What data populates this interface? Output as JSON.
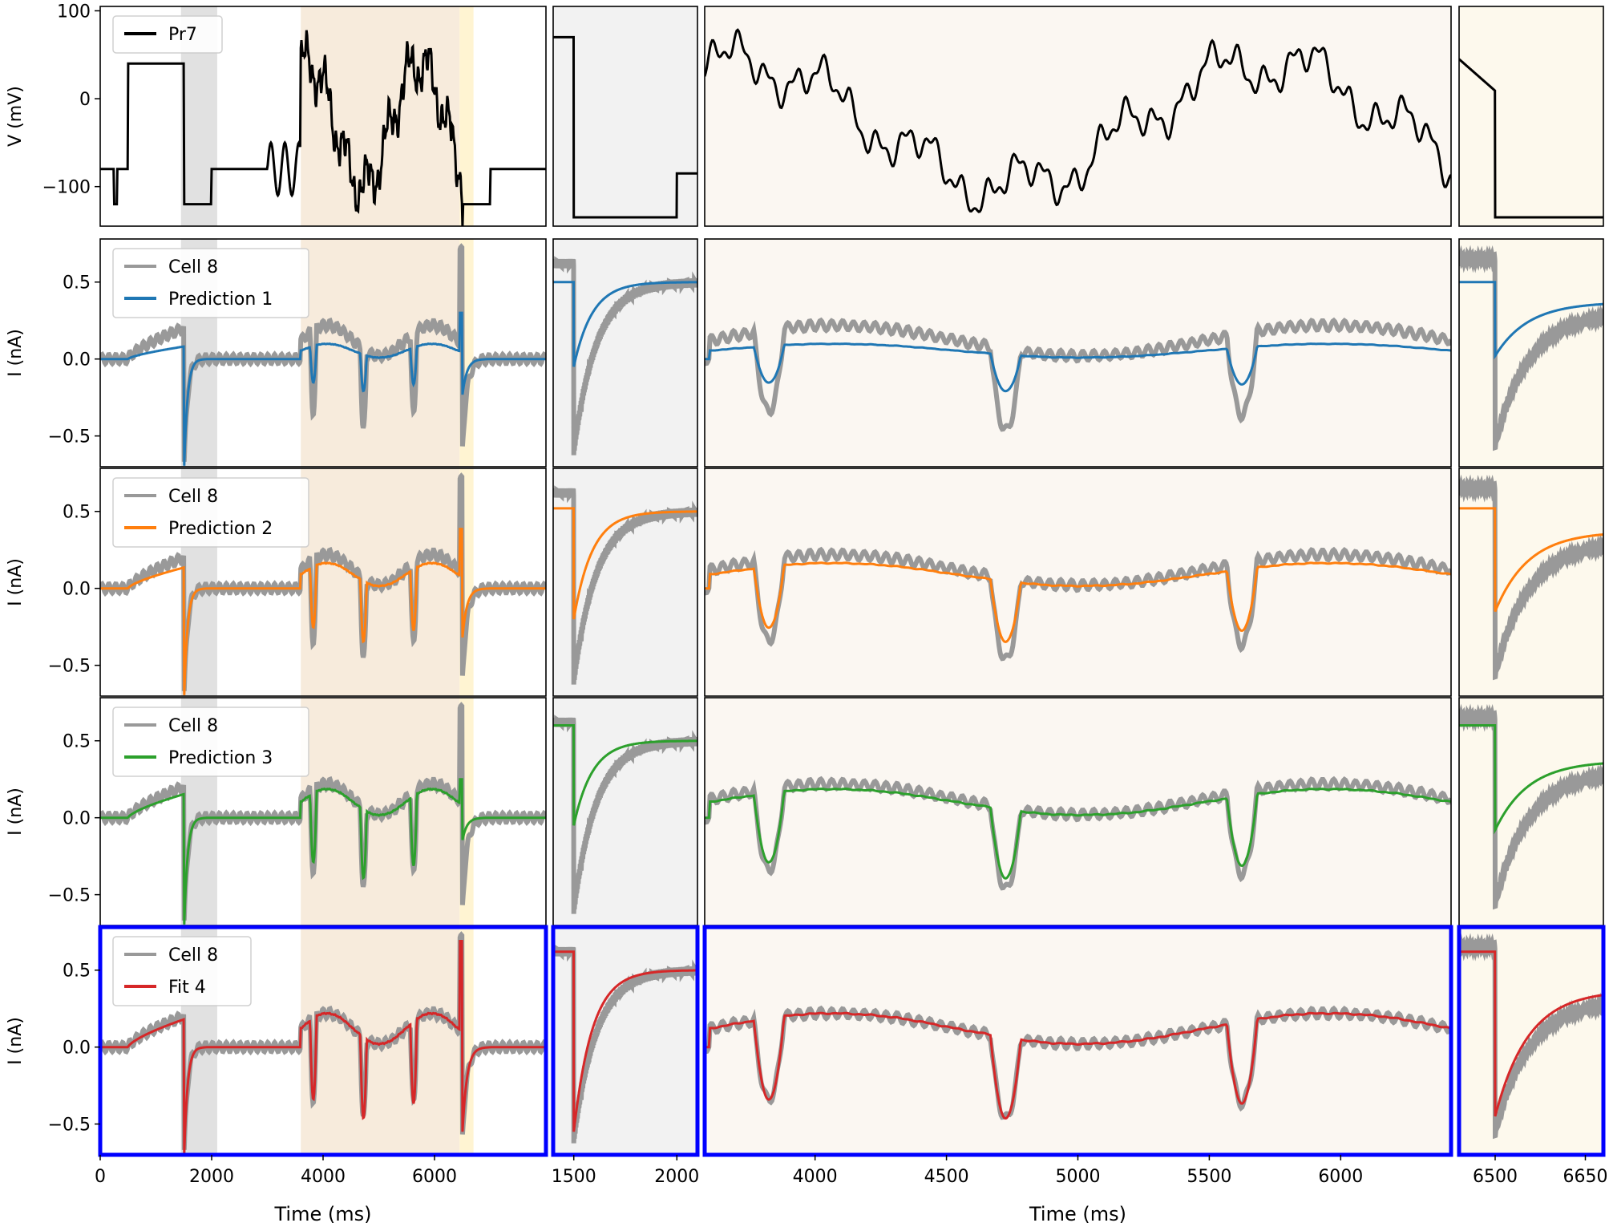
{
  "figure": {
    "x_label": "Time (ms)",
    "panels": [
      {
        "name": "panel-full",
        "xlim": [
          0,
          8000
        ],
        "xticks": [
          0,
          2000,
          4000,
          6000
        ],
        "shade": [
          {
            "from": 1450,
            "to": 2100,
            "color": "#d9d9d9"
          },
          {
            "from": 3600,
            "to": 6450,
            "color": "#f5e6d3"
          },
          {
            "from": 6450,
            "to": 6700,
            "color": "#fff1c7"
          }
        ],
        "frame": "#000000"
      },
      {
        "name": "panel-step",
        "xlim": [
          1400,
          2100
        ],
        "xticks": [
          1500,
          2000
        ],
        "shade": [
          {
            "from": 1400,
            "to": 2100,
            "color": "#efefef"
          }
        ],
        "frame": "#000000"
      },
      {
        "name": "panel-sine",
        "xlim": [
          3580,
          6420
        ],
        "xticks": [
          4000,
          4500,
          5000,
          5500,
          6000
        ],
        "shade": [
          {
            "from": 3580,
            "to": 6420,
            "color": "#faf5ef"
          }
        ],
        "frame": "#000000"
      },
      {
        "name": "panel-tail",
        "xlim": [
          6440,
          6680
        ],
        "xticks": [
          6500,
          6650
        ],
        "shade": [
          {
            "from": 6440,
            "to": 6680,
            "color": "#fdf8e8"
          }
        ],
        "frame": "#000000"
      }
    ],
    "highlight_color": "#0000ff"
  },
  "chart_data": {
    "type": "line",
    "rows": [
      {
        "ylabel": "V (mV)",
        "ylim": [
          -145,
          105
        ],
        "yticks": [
          {
            "v": 100,
            "label": "100"
          },
          {
            "v": 0,
            "label": "0"
          },
          {
            "v": -100,
            "label": "−100"
          }
        ],
        "legend": [
          {
            "label": "Pr7",
            "color": "#000000"
          }
        ],
        "series": [
          {
            "name": "Pr7",
            "color": "#000000",
            "kind": "protocol"
          }
        ]
      },
      {
        "ylabel": "I (nA)",
        "ylim": [
          -0.7,
          0.78
        ],
        "yticks": [
          {
            "v": 0.5,
            "label": "0.5"
          },
          {
            "v": 0.0,
            "label": "0.0"
          },
          {
            "v": -0.5,
            "label": "−0.5"
          }
        ],
        "legend": [
          {
            "label": "Cell 8",
            "color": "#999999"
          },
          {
            "label": "Prediction 1",
            "color": "#1f77b4"
          }
        ],
        "series": [
          {
            "name": "Cell 8",
            "color": "#999999",
            "kind": "data"
          },
          {
            "name": "Prediction 1",
            "color": "#1f77b4",
            "kind": "model",
            "scale": 0.45,
            "tailscale": 0.4,
            "pre": 0.5
          }
        ]
      },
      {
        "ylabel": "I (nA)",
        "ylim": [
          -0.7,
          0.78
        ],
        "yticks": [
          {
            "v": 0.5,
            "label": "0.5"
          },
          {
            "v": 0.0,
            "label": "0.0"
          },
          {
            "v": -0.5,
            "label": "−0.5"
          }
        ],
        "legend": [
          {
            "label": "Cell 8",
            "color": "#999999"
          },
          {
            "label": "Prediction 2",
            "color": "#ff7f0e"
          }
        ],
        "series": [
          {
            "name": "Cell 8",
            "color": "#999999",
            "kind": "data"
          },
          {
            "name": "Prediction 2",
            "color": "#ff7f0e",
            "kind": "model",
            "scale": 0.75,
            "tailscale": 0.55,
            "pre": 0.52
          }
        ]
      },
      {
        "ylabel": "I (nA)",
        "ylim": [
          -0.7,
          0.78
        ],
        "yticks": [
          {
            "v": 0.5,
            "label": "0.5"
          },
          {
            "v": 0.0,
            "label": "0.0"
          },
          {
            "v": -0.5,
            "label": "−0.5"
          }
        ],
        "legend": [
          {
            "label": "Cell 8",
            "color": "#999999"
          },
          {
            "label": "Prediction 3",
            "color": "#2ca02c"
          }
        ],
        "series": [
          {
            "name": "Cell 8",
            "color": "#999999",
            "kind": "data"
          },
          {
            "name": "Prediction 3",
            "color": "#2ca02c",
            "kind": "model",
            "scale": 0.85,
            "tailscale": 0.25,
            "pre": 0.6
          }
        ]
      },
      {
        "ylabel": "I (nA)",
        "ylim": [
          -0.7,
          0.78
        ],
        "yticks": [
          {
            "v": 0.5,
            "label": "0.5"
          },
          {
            "v": 0.0,
            "label": "0.0"
          },
          {
            "v": -0.5,
            "label": "−0.5"
          }
        ],
        "legend": [
          {
            "label": "Cell 8",
            "color": "#999999"
          },
          {
            "label": "Fit 4",
            "color": "#d62728"
          }
        ],
        "series": [
          {
            "name": "Cell 8",
            "color": "#999999",
            "kind": "data"
          },
          {
            "name": "Fit 4",
            "color": "#d62728",
            "kind": "model",
            "scale": 1.0,
            "tailscale": 0.95,
            "pre": 0.62
          }
        ],
        "highlighted": true
      }
    ]
  }
}
